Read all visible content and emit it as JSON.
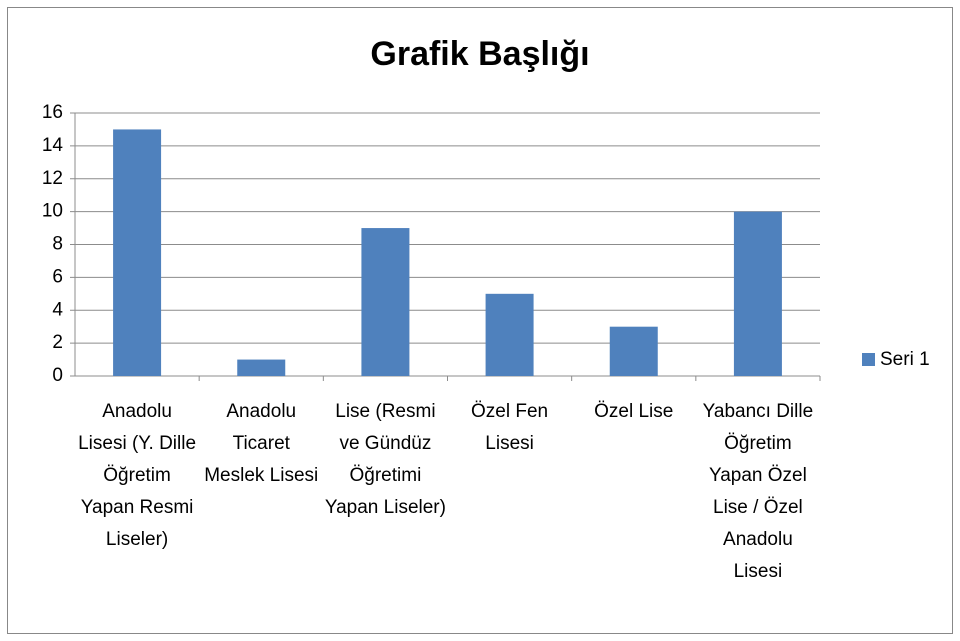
{
  "chart_data": {
    "type": "bar",
    "title": "Grafik Başlığı",
    "categories": [
      "Anadolu Lisesi (Y. Dille Öğretim Yapan Resmi Liseler)",
      "Anadolu Ticaret Meslek Lisesi",
      "Lise (Resmi ve Gündüz Öğretimi Yapan Liseler)",
      "Özel Fen Lisesi",
      "Özel Lise",
      "Yabancı Dille Öğretim Yapan Özel Lise / Özel Anadolu Lisesi"
    ],
    "series": [
      {
        "name": "Seri 1",
        "color": "#4f81bd",
        "values": [
          15,
          1,
          9,
          5,
          3,
          10
        ]
      }
    ],
    "ylim": [
      0,
      16
    ],
    "yticks": [
      0,
      2,
      4,
      6,
      8,
      10,
      12,
      14,
      16
    ],
    "grid": true,
    "legend": "right"
  }
}
